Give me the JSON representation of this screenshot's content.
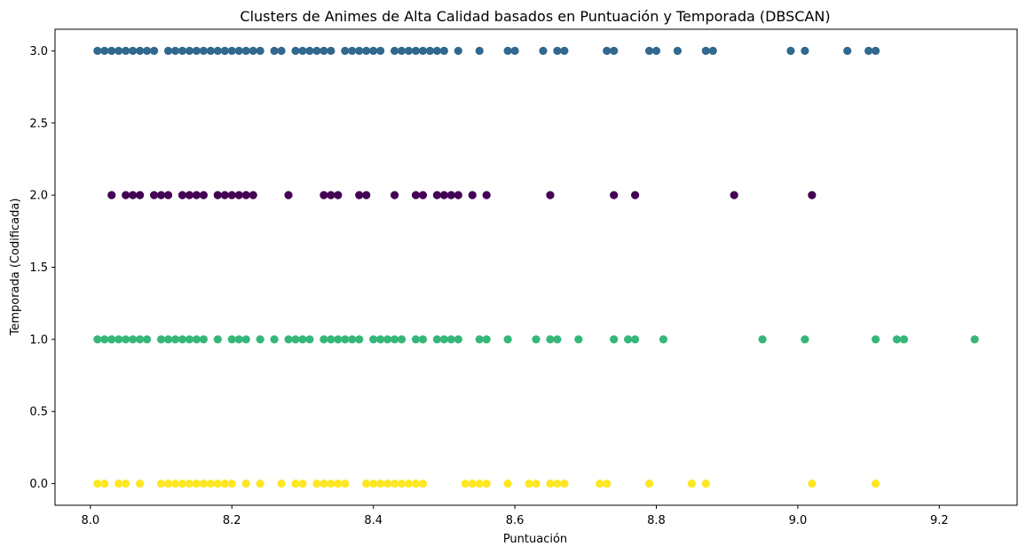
{
  "chart_data": {
    "type": "scatter",
    "title": "Clusters de Animes de Alta Calidad basados en Puntuación y Temporada (DBSCAN)",
    "xlabel": "Puntuación",
    "ylabel": "Temporada (Codificada)",
    "xlim": [
      7.95,
      9.31
    ],
    "ylim": [
      -0.15,
      3.15
    ],
    "x_ticks": [
      8.0,
      8.2,
      8.4,
      8.6,
      8.8,
      9.0,
      9.2
    ],
    "x_tick_labels": [
      "8.0",
      "8.2",
      "8.4",
      "8.6",
      "8.8",
      "9.0",
      "9.2"
    ],
    "y_ticks": [
      0.0,
      0.5,
      1.0,
      1.5,
      2.0,
      2.5,
      3.0
    ],
    "y_tick_labels": [
      "0.0",
      "0.5",
      "1.0",
      "1.5",
      "2.0",
      "2.5",
      "3.0"
    ],
    "grid": false,
    "legend": "none",
    "series": [
      {
        "color": "#31688e",
        "y": 3.0,
        "x": [
          8.01,
          8.02,
          8.03,
          8.04,
          8.05,
          8.06,
          8.07,
          8.08,
          8.09,
          8.11,
          8.12,
          8.13,
          8.14,
          8.15,
          8.16,
          8.17,
          8.18,
          8.19,
          8.2,
          8.21,
          8.22,
          8.23,
          8.24,
          8.26,
          8.27,
          8.29,
          8.3,
          8.31,
          8.32,
          8.33,
          8.34,
          8.36,
          8.37,
          8.38,
          8.39,
          8.4,
          8.41,
          8.43,
          8.44,
          8.45,
          8.46,
          8.47,
          8.48,
          8.49,
          8.5,
          8.52,
          8.55,
          8.59,
          8.6,
          8.64,
          8.66,
          8.67,
          8.73,
          8.74,
          8.79,
          8.8,
          8.83,
          8.87,
          8.88,
          8.99,
          9.01,
          9.07,
          9.1,
          9.11
        ]
      },
      {
        "color": "#440154",
        "y": 2.0,
        "x": [
          8.03,
          8.05,
          8.06,
          8.07,
          8.09,
          8.1,
          8.11,
          8.13,
          8.14,
          8.15,
          8.16,
          8.18,
          8.19,
          8.2,
          8.21,
          8.22,
          8.23,
          8.28,
          8.33,
          8.34,
          8.35,
          8.38,
          8.39,
          8.43,
          8.46,
          8.47,
          8.49,
          8.5,
          8.51,
          8.52,
          8.54,
          8.56,
          8.65,
          8.74,
          8.77,
          8.91,
          9.02
        ]
      },
      {
        "color": "#35b779",
        "y": 1.0,
        "x": [
          8.01,
          8.02,
          8.03,
          8.04,
          8.05,
          8.06,
          8.07,
          8.08,
          8.1,
          8.11,
          8.12,
          8.13,
          8.14,
          8.15,
          8.16,
          8.18,
          8.2,
          8.21,
          8.22,
          8.24,
          8.26,
          8.28,
          8.29,
          8.3,
          8.31,
          8.33,
          8.34,
          8.35,
          8.36,
          8.37,
          8.38,
          8.4,
          8.41,
          8.42,
          8.43,
          8.44,
          8.46,
          8.47,
          8.49,
          8.5,
          8.51,
          8.52,
          8.55,
          8.56,
          8.59,
          8.63,
          8.65,
          8.66,
          8.69,
          8.74,
          8.76,
          8.77,
          8.81,
          8.95,
          9.01,
          9.11,
          9.14,
          9.15,
          9.25
        ]
      },
      {
        "color": "#fde725",
        "y": 0.0,
        "x": [
          8.01,
          8.02,
          8.04,
          8.05,
          8.07,
          8.1,
          8.11,
          8.12,
          8.13,
          8.14,
          8.15,
          8.16,
          8.17,
          8.18,
          8.19,
          8.2,
          8.22,
          8.24,
          8.27,
          8.29,
          8.3,
          8.32,
          8.33,
          8.34,
          8.35,
          8.36,
          8.39,
          8.4,
          8.41,
          8.42,
          8.43,
          8.44,
          8.45,
          8.46,
          8.47,
          8.53,
          8.54,
          8.55,
          8.56,
          8.59,
          8.62,
          8.63,
          8.65,
          8.66,
          8.67,
          8.72,
          8.73,
          8.79,
          8.85,
          8.87,
          9.02,
          9.11
        ]
      }
    ]
  }
}
